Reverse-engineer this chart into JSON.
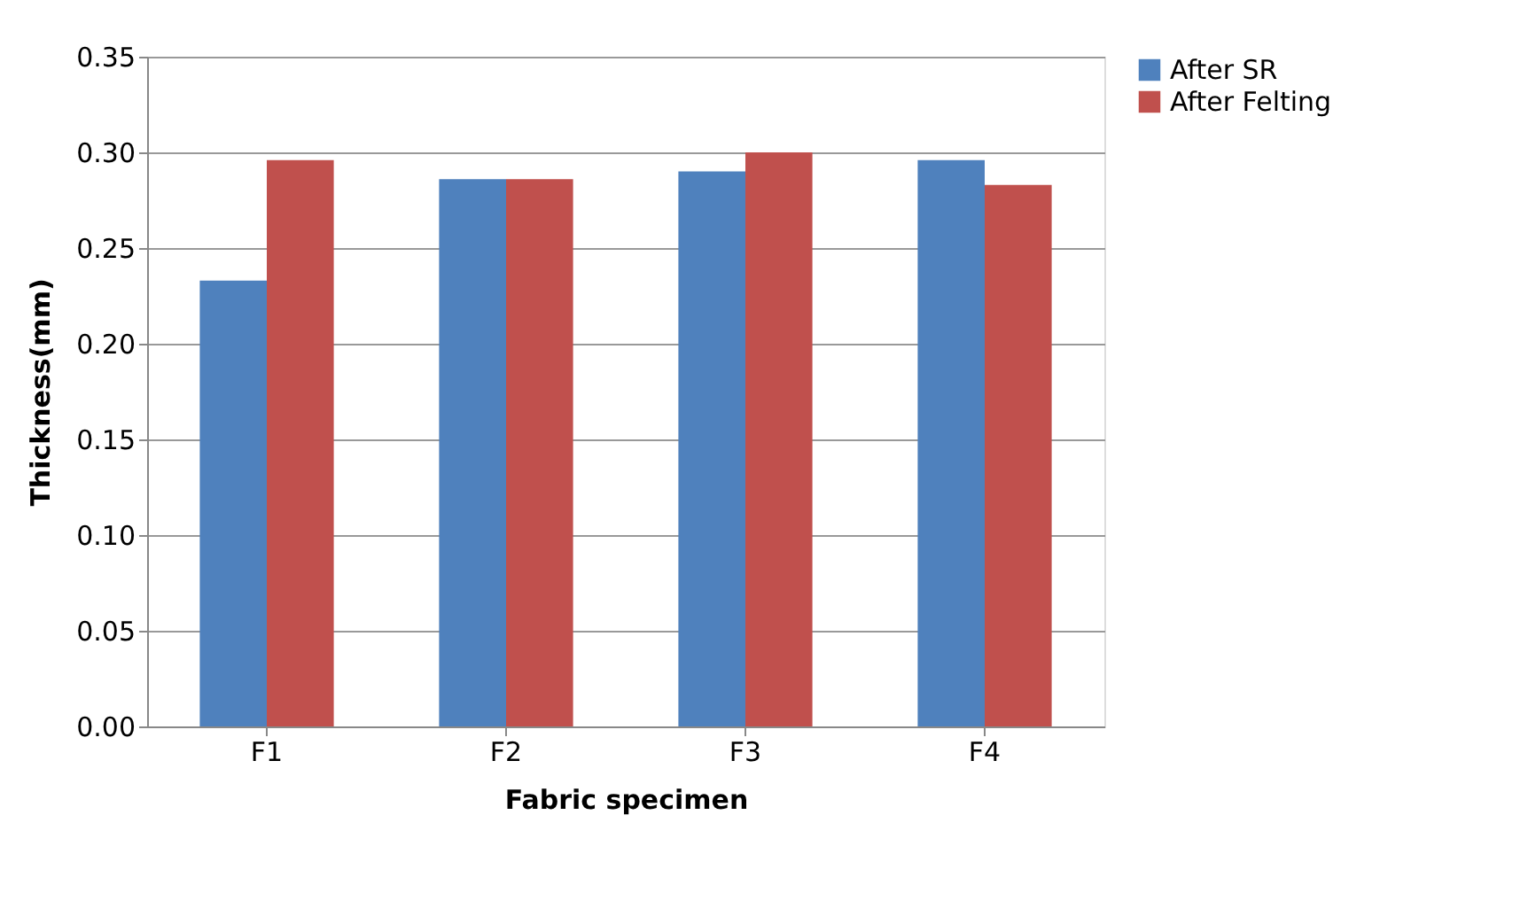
{
  "chart_data": {
    "type": "bar",
    "xlabel": "Fabric specimen",
    "ylabel": "Thickness(mm)",
    "categories": [
      "F1",
      "F2",
      "F3",
      "F4"
    ],
    "series": [
      {
        "name": "After SR",
        "color": "#4f81bd",
        "values": [
          0.233,
          0.286,
          0.29,
          0.296
        ]
      },
      {
        "name": "After Felting",
        "color": "#c0504d",
        "values": [
          0.296,
          0.286,
          0.3,
          0.283
        ]
      }
    ],
    "ylim": [
      0,
      0.35
    ],
    "yticks": [
      {
        "value": 0,
        "label": "0.00"
      },
      {
        "value": 0.05,
        "label": "0.05"
      },
      {
        "value": 0.1,
        "label": "0.10"
      },
      {
        "value": 0.15,
        "label": "0.15"
      },
      {
        "value": 0.2,
        "label": "0.20"
      },
      {
        "value": 0.25,
        "label": "0.25"
      },
      {
        "value": 0.3,
        "label": "0.30"
      },
      {
        "value": 0.35,
        "label": "0.35"
      }
    ],
    "grid": "y",
    "legend": "right"
  }
}
